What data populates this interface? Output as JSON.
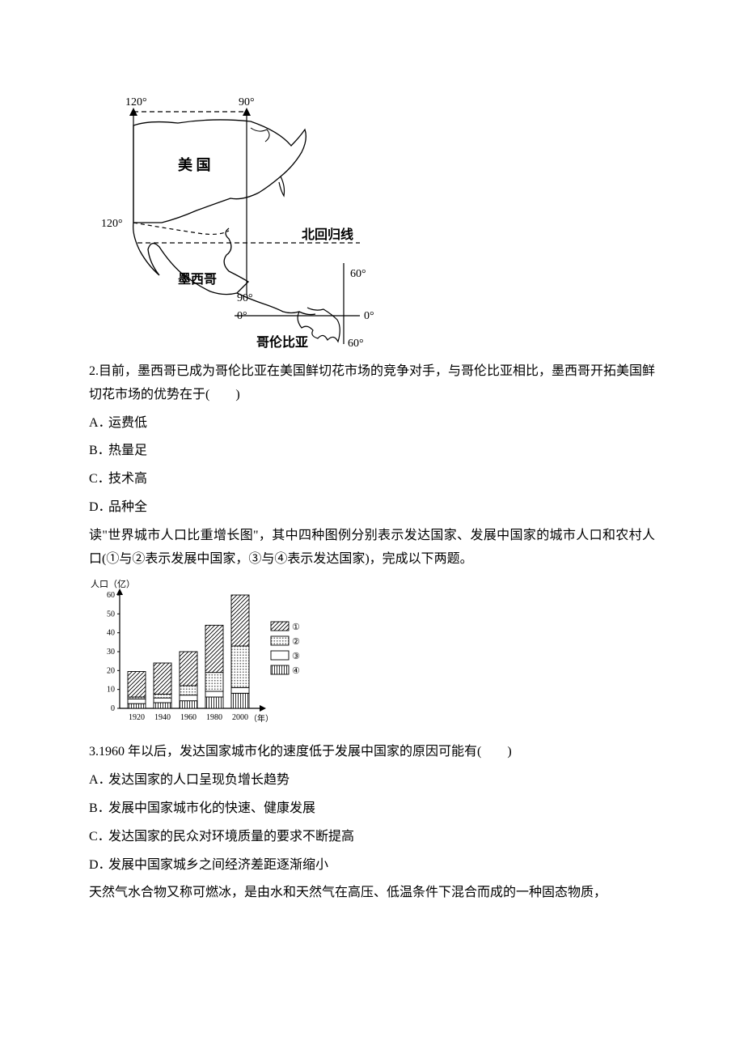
{
  "map": {
    "labels": {
      "lon120_top": "120°",
      "lon90_top": "90°",
      "lon120_left": "120°",
      "usa": "美 国",
      "tropic": "北回归线",
      "mexico": "墨西哥",
      "lon90_bot": "90°",
      "lon60_right": "60°",
      "lat0_left": "0°",
      "lat0_right": "0°",
      "colombia": "哥伦比亚",
      "lon60_bot": "60°"
    },
    "text_fontsize": 14,
    "text_fontsize_bold": 15,
    "line_color": "#000000",
    "line_width": 1.2,
    "background_color": "#ffffff"
  },
  "q2": {
    "stem": "2.目前，墨西哥已成为哥伦比亚在美国鲜切花市场的竞争对手，与哥伦比亚相比，墨西哥开拓美国鲜切花市场的优势在于(　　)",
    "options": {
      "A": "运费低",
      "B": "热量足",
      "C": "技术高",
      "D": "品种全"
    }
  },
  "chart_intro": "读\"世界城市人口比重增长图\"，其中四种图例分别表示发达国家、发展中国家的城市人口和农村人口(①与②表示发展中国家，③与④表示发达国家)，完成以下两题。",
  "chart": {
    "type": "stacked_bar",
    "ylabel": "人口（亿）",
    "xlabel_suffix": "（年）",
    "years": [
      "1920",
      "1940",
      "1960",
      "1980",
      "2000"
    ],
    "ylim": [
      0,
      60
    ],
    "ytick_step": 10,
    "yticks": [
      0,
      10,
      20,
      30,
      40,
      50,
      60
    ],
    "label_fontsize": 11,
    "tick_fontsize": 10,
    "axis_color": "#000000",
    "axis_width": 1.2,
    "bar_width": 0.65,
    "background_color": "#ffffff",
    "series": [
      {
        "id": "④",
        "pattern": "vertical",
        "values": [
          2.5,
          3,
          4,
          6,
          8
        ]
      },
      {
        "id": "③",
        "pattern": "none",
        "values": [
          2.5,
          2.5,
          3,
          3,
          3
        ]
      },
      {
        "id": "②",
        "pattern": "grid",
        "values": [
          1,
          2,
          5,
          10,
          22
        ]
      },
      {
        "id": "①",
        "pattern": "diagonal",
        "values": [
          13.5,
          16.5,
          18,
          25,
          27
        ]
      }
    ],
    "legend": {
      "items": [
        "①",
        "②",
        "③",
        "④"
      ],
      "box_stroke": "#000000",
      "fontsize": 11
    }
  },
  "q3": {
    "stem": "3.1960 年以后，发达国家城市化的速度低于发展中国家的原因可能有(　　)",
    "options": {
      "A": "发达国家的人口呈现负增长趋势",
      "B": "发展中国家城市化的快速、健康发展",
      "C": "发达国家的民众对环境质量的要求不断提高",
      "D": "发展中国家城乡之间经济差距逐渐缩小"
    }
  },
  "footer_para": "天然气水合物又称可燃冰，是由水和天然气在高压、低温条件下混合而成的一种固态物质，"
}
